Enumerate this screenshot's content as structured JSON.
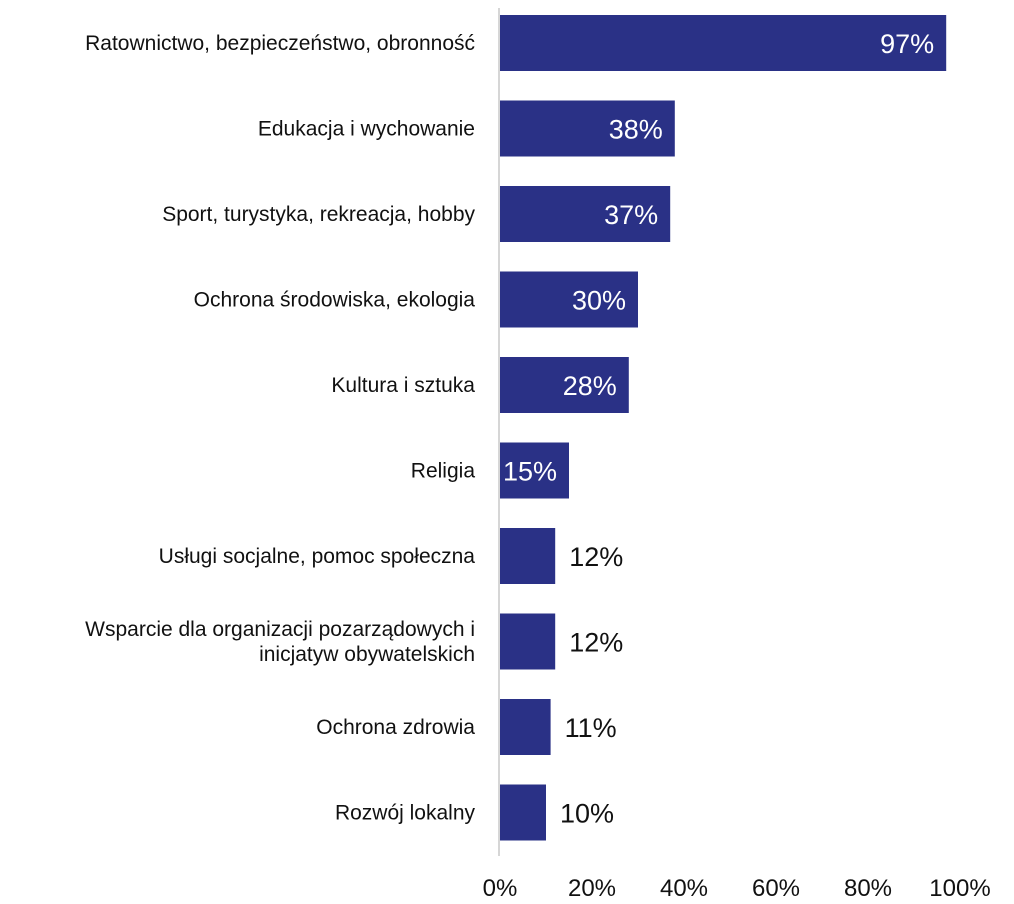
{
  "chart_data": {
    "type": "bar",
    "orientation": "horizontal",
    "title": "",
    "xlabel": "",
    "ylabel": "",
    "categories": [
      [
        "Ratownictwo, bezpieczeństwo, obronność"
      ],
      [
        "Edukacja i wychowanie"
      ],
      [
        "Sport, turystyka, rekreacja, hobby"
      ],
      [
        "Ochrona środowiska, ekologia"
      ],
      [
        "Kultura i sztuka"
      ],
      [
        "Religia"
      ],
      [
        "Usługi socjalne, pomoc społeczna"
      ],
      [
        "Wsparcie dla organizacji pozarządowych i",
        "inicjatyw obywatelskich"
      ],
      [
        "Ochrona zdrowia"
      ],
      [
        "Rozwój lokalny"
      ]
    ],
    "values": [
      97,
      38,
      37,
      30,
      28,
      15,
      12,
      12,
      11,
      10
    ],
    "value_labels": [
      "97%",
      "38%",
      "37%",
      "30%",
      "28%",
      "15%",
      "12%",
      "12%",
      "11%",
      "10%"
    ],
    "xlim": [
      0,
      100
    ],
    "x_ticks": [
      0,
      20,
      40,
      60,
      80,
      100
    ],
    "x_tick_labels": [
      "0%",
      "20%",
      "40%",
      "60%",
      "80%",
      "100%"
    ],
    "grid": false,
    "legend": "none",
    "colors": {
      "bar": "#2a3186",
      "label_inside": "#ffffff",
      "label_outside": "#111111",
      "axis": "#c8c8c8"
    }
  }
}
